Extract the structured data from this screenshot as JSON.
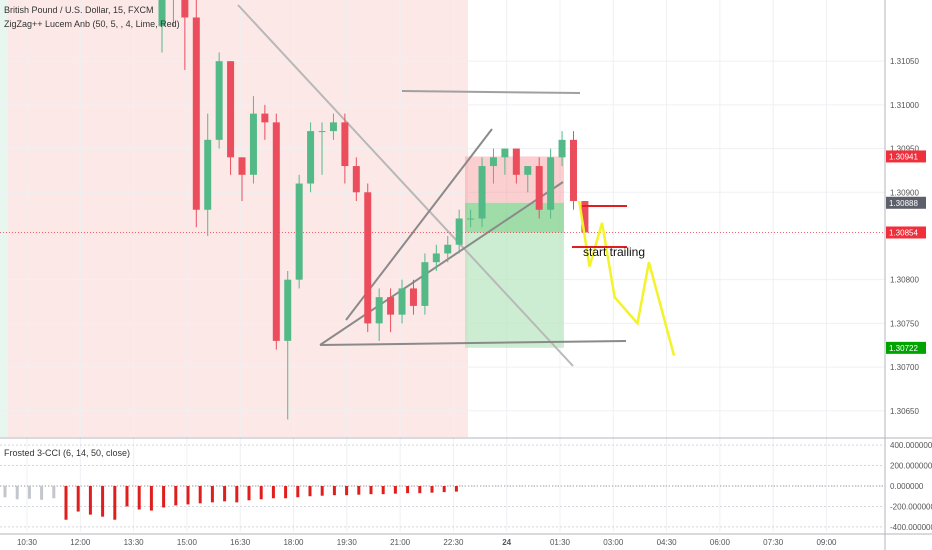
{
  "chart_data": {
    "type": "candlestick",
    "title": "British Pound / U.S. Dollar, 15, FXCM",
    "indicator_label": "ZigZag++ Lucem Anb (50, 5, , 4, Lime, Red)",
    "oscillator_label": "Frosted 3-CCI (6, 14, 50, close)",
    "annotation": "start trailing",
    "price_axis": {
      "ylim": [
        1.3062,
        1.3112
      ],
      "ticks": [
        "1.31050",
        "1.31000",
        "1.30950",
        "1.30900",
        "1.30800",
        "1.30750",
        "1.30700",
        "1.30650"
      ],
      "tick_values": [
        1.3105,
        1.31,
        1.3095,
        1.309,
        1.308,
        1.3075,
        1.307,
        1.3065
      ]
    },
    "price_tags": [
      {
        "label": "1.30941",
        "value": 1.30941,
        "color": "#ef2f3c"
      },
      {
        "label": "1.30888",
        "value": 1.30888,
        "color": "#5d606b"
      },
      {
        "label": "1.30854",
        "value": 1.30854,
        "color": "#ef2f3c"
      },
      {
        "label": "1.30722",
        "value": 1.30722,
        "color": "#00a300"
      }
    ],
    "cci_axis": {
      "ylim": [
        -450,
        450
      ],
      "ticks": [
        "400.000000",
        "200.000000",
        "0.000000",
        "-200.000000",
        "-400.000000"
      ],
      "tick_values": [
        400,
        200,
        0,
        -200,
        -400
      ]
    },
    "time_axis": {
      "ticks": [
        "10:30",
        "12:00",
        "13:30",
        "15:00",
        "16:30",
        "18:00",
        "19:30",
        "21:00",
        "22:30",
        "24",
        "01:30",
        "03:00",
        "04:30",
        "06:00",
        "07:30",
        "09:00"
      ]
    },
    "candles": [
      {
        "o": 1.3109,
        "h": 1.3113,
        "l": 1.3106,
        "c": 1.3112
      },
      {
        "o": 1.3112,
        "h": 1.3114,
        "l": 1.3109,
        "c": 1.3113
      },
      {
        "o": 1.3113,
        "h": 1.3114,
        "l": 1.3104,
        "c": 1.311
      },
      {
        "o": 1.311,
        "h": 1.3113,
        "l": 1.3086,
        "c": 1.3088
      },
      {
        "o": 1.3088,
        "h": 1.3099,
        "l": 1.3085,
        "c": 1.3096
      },
      {
        "o": 1.3096,
        "h": 1.3106,
        "l": 1.3095,
        "c": 1.3105
      },
      {
        "o": 1.3105,
        "h": 1.3105,
        "l": 1.3092,
        "c": 1.3094
      },
      {
        "o": 1.3094,
        "h": 1.3094,
        "l": 1.3089,
        "c": 1.3092
      },
      {
        "o": 1.3092,
        "h": 1.3101,
        "l": 1.3091,
        "c": 1.3099
      },
      {
        "o": 1.3099,
        "h": 1.31,
        "l": 1.3096,
        "c": 1.3098
      },
      {
        "o": 1.3098,
        "h": 1.3099,
        "l": 1.3072,
        "c": 1.3073
      },
      {
        "o": 1.3073,
        "h": 1.3081,
        "l": 1.3064,
        "c": 1.308
      },
      {
        "o": 1.308,
        "h": 1.3092,
        "l": 1.3079,
        "c": 1.3091
      },
      {
        "o": 1.3091,
        "h": 1.3098,
        "l": 1.309,
        "c": 1.3097
      },
      {
        "o": 1.3097,
        "h": 1.3098,
        "l": 1.3092,
        "c": 1.3097
      },
      {
        "o": 1.3097,
        "h": 1.3099,
        "l": 1.3096,
        "c": 1.3098
      },
      {
        "o": 1.3098,
        "h": 1.3099,
        "l": 1.3091,
        "c": 1.3093
      },
      {
        "o": 1.3093,
        "h": 1.3094,
        "l": 1.3089,
        "c": 1.309
      },
      {
        "o": 1.309,
        "h": 1.3091,
        "l": 1.3074,
        "c": 1.3075
      },
      {
        "o": 1.3075,
        "h": 1.3079,
        "l": 1.3073,
        "c": 1.3078
      },
      {
        "o": 1.3078,
        "h": 1.3079,
        "l": 1.3074,
        "c": 1.3076
      },
      {
        "o": 1.3076,
        "h": 1.308,
        "l": 1.3075,
        "c": 1.3079
      },
      {
        "o": 1.3079,
        "h": 1.308,
        "l": 1.3076,
        "c": 1.3077
      },
      {
        "o": 1.3077,
        "h": 1.3083,
        "l": 1.3076,
        "c": 1.3082
      },
      {
        "o": 1.3082,
        "h": 1.3084,
        "l": 1.3081,
        "c": 1.3083
      },
      {
        "o": 1.3083,
        "h": 1.3085,
        "l": 1.3082,
        "c": 1.3084
      },
      {
        "o": 1.3084,
        "h": 1.3088,
        "l": 1.3083,
        "c": 1.3087
      },
      {
        "o": 1.3087,
        "h": 1.3088,
        "l": 1.3086,
        "c": 1.3087
      },
      {
        "o": 1.3087,
        "h": 1.3094,
        "l": 1.3086,
        "c": 1.3093
      },
      {
        "o": 1.3093,
        "h": 1.3095,
        "l": 1.3091,
        "c": 1.3094
      },
      {
        "o": 1.3094,
        "h": 1.3095,
        "l": 1.3092,
        "c": 1.3095
      },
      {
        "o": 1.3095,
        "h": 1.3095,
        "l": 1.3091,
        "c": 1.3092
      },
      {
        "o": 1.3092,
        "h": 1.3093,
        "l": 1.309,
        "c": 1.3093
      },
      {
        "o": 1.3093,
        "h": 1.3094,
        "l": 1.3087,
        "c": 1.3088
      },
      {
        "o": 1.3088,
        "h": 1.3095,
        "l": 1.3087,
        "c": 1.3094
      },
      {
        "o": 1.3094,
        "h": 1.3097,
        "l": 1.3093,
        "c": 1.3096
      },
      {
        "o": 1.3096,
        "h": 1.3097,
        "l": 1.3088,
        "c": 1.3089
      },
      {
        "o": 1.3089,
        "h": 1.3089,
        "l": 1.3085,
        "c": 1.30854
      }
    ],
    "cci_values": [
      -110,
      -130,
      -125,
      -135,
      -120,
      -330,
      -250,
      -280,
      -300,
      -330,
      -200,
      -230,
      -240,
      -210,
      -190,
      -180,
      -170,
      -160,
      -150,
      -160,
      -140,
      -130,
      -120,
      -120,
      -110,
      -100,
      -95,
      -90,
      -90,
      -85,
      -80,
      -80,
      -75,
      -70,
      -70,
      -65,
      -60,
      -55
    ],
    "cci_gray_count": 5,
    "zigzag": [
      {
        "i": 36.5,
        "v": 1.3089
      },
      {
        "i": 37.4,
        "v": 1.30815
      },
      {
        "i": 38.5,
        "v": 1.30865
      },
      {
        "i": 39.6,
        "v": 1.3078
      },
      {
        "i": 41.6,
        "v": 1.3075
      },
      {
        "i": 42.6,
        "v": 1.3082
      },
      {
        "i": 44.8,
        "v": 1.30713
      }
    ],
    "target_zone": {
      "entry": 1.30888,
      "stop": 1.30941,
      "target": 1.30722
    },
    "target_zone_profit_top": 1.30854
  }
}
